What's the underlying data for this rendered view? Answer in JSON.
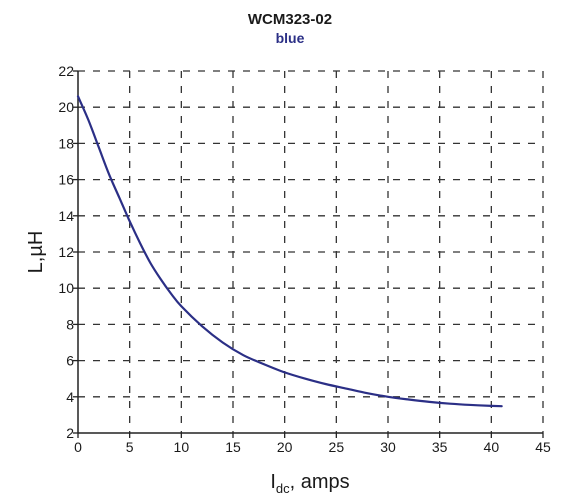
{
  "chart_data": {
    "type": "line",
    "title": "WCM323-02",
    "subtitle": "blue",
    "xlabel_main": "I",
    "xlabel_sub": "dc",
    "xlabel_rest": ", amps",
    "ylabel": "L,µH",
    "xlim": [
      0,
      45
    ],
    "ylim": [
      2,
      22
    ],
    "x_ticks": [
      0,
      5,
      10,
      15,
      20,
      25,
      30,
      35,
      40,
      45
    ],
    "y_ticks": [
      2,
      4,
      6,
      8,
      10,
      12,
      14,
      16,
      18,
      20,
      22
    ],
    "grid": true,
    "series_color": "#2b2f86",
    "series": [
      {
        "x": [
          0,
          1,
          2,
          3,
          4,
          5,
          6,
          7,
          8,
          9,
          10,
          12,
          14,
          16,
          18,
          20,
          22,
          24,
          26,
          28,
          30,
          32,
          34,
          36,
          38,
          40,
          41
        ],
        "y": [
          20.6,
          19.3,
          17.8,
          16.3,
          15.0,
          13.7,
          12.5,
          11.4,
          10.5,
          9.7,
          9.0,
          7.9,
          7.0,
          6.3,
          5.8,
          5.35,
          5.0,
          4.7,
          4.45,
          4.2,
          4.0,
          3.85,
          3.72,
          3.62,
          3.55,
          3.5,
          3.48
        ]
      }
    ]
  }
}
